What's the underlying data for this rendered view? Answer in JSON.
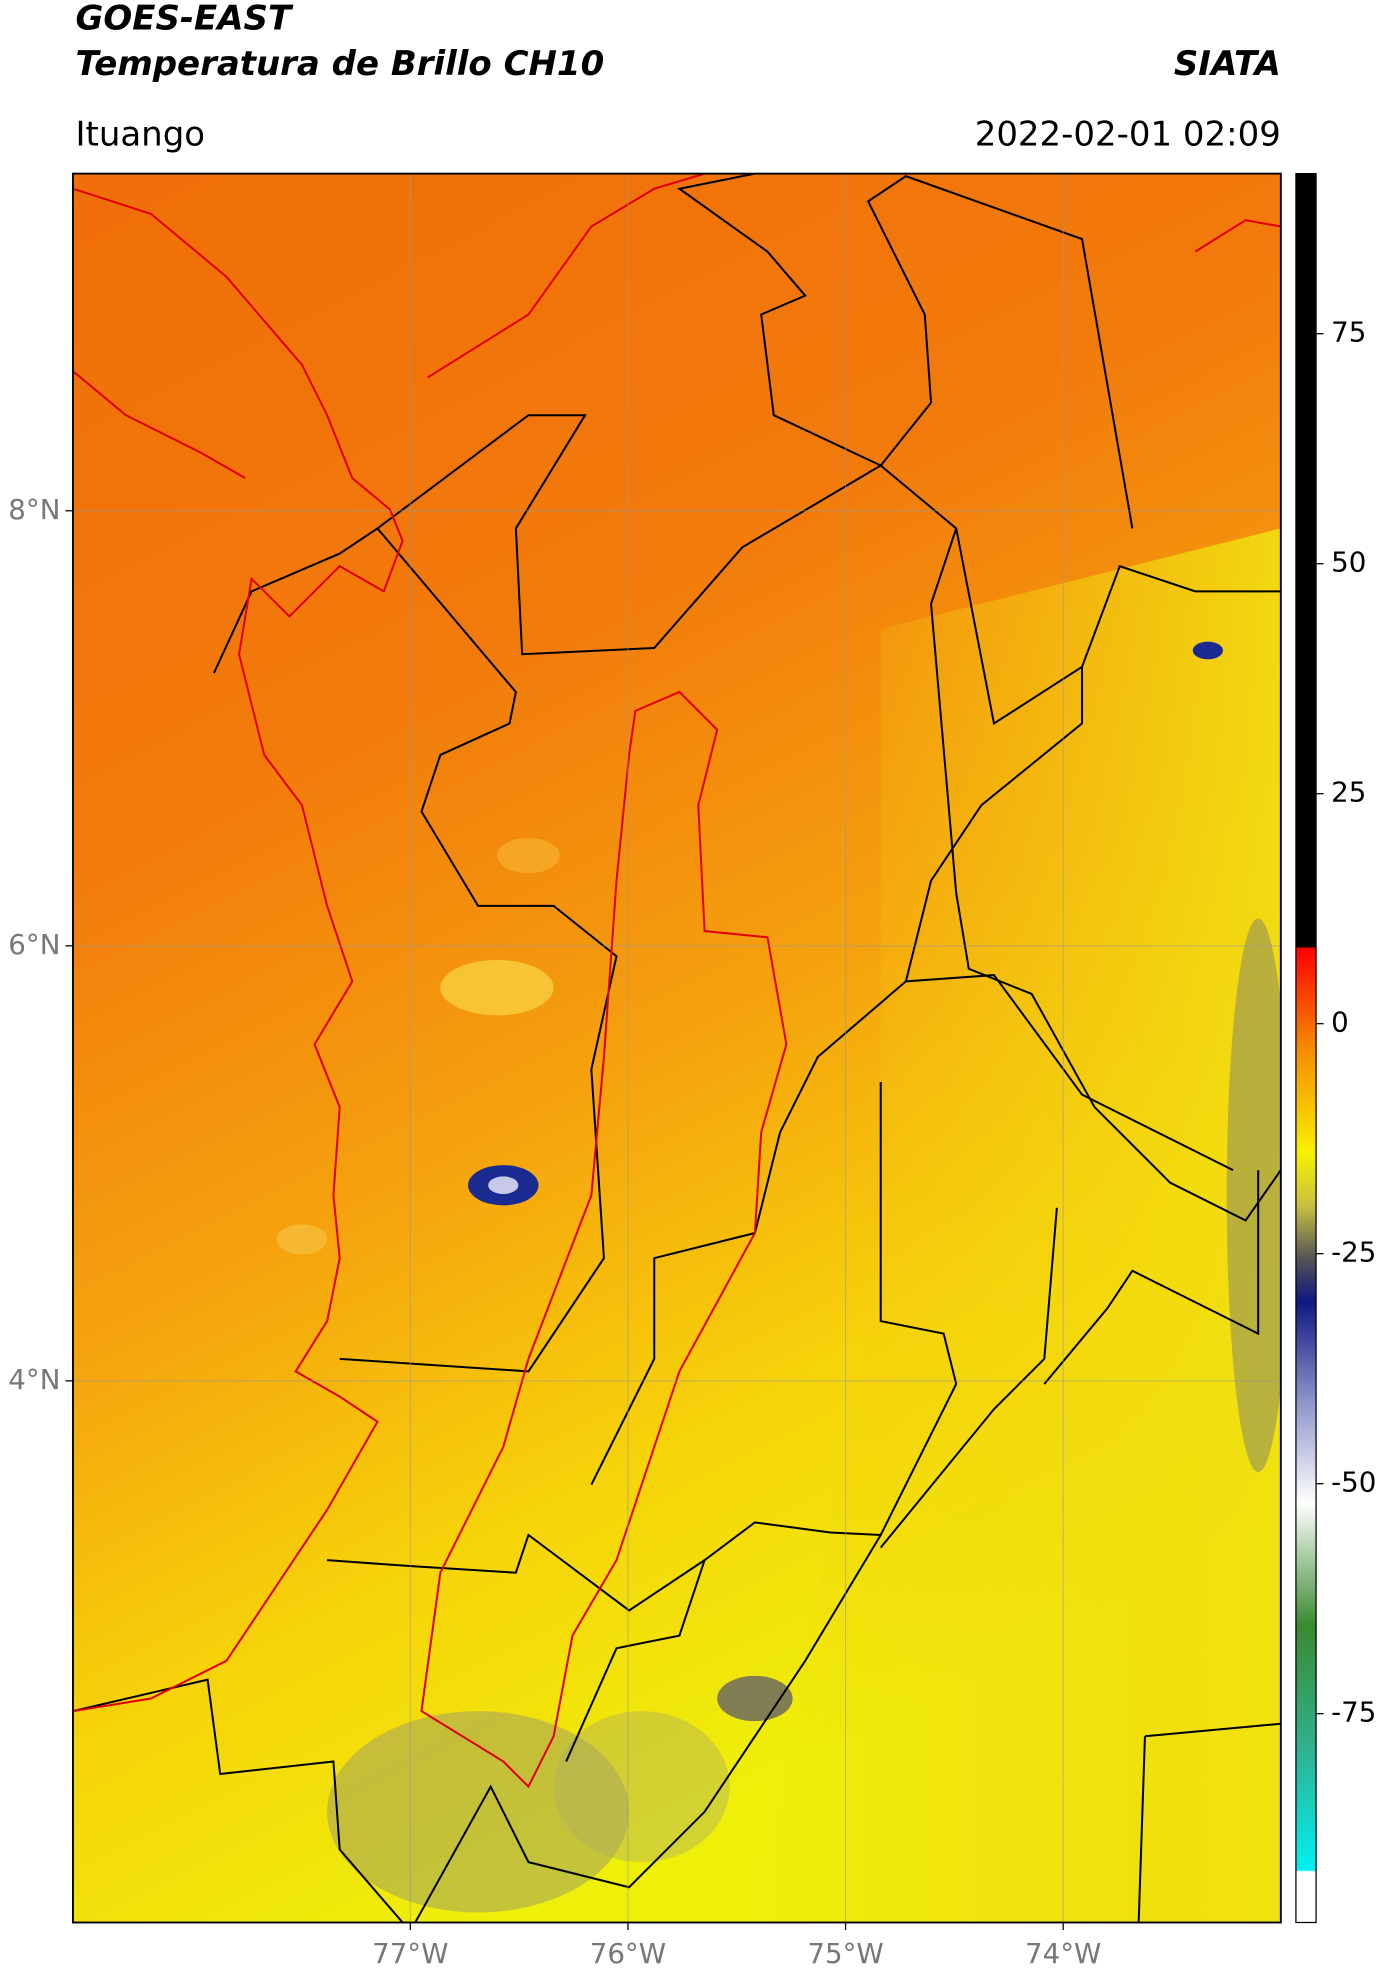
{
  "header": {
    "title": "GOES-EAST",
    "subtitle": "Temperatura de Brillo CH10",
    "source": "SIATA",
    "region": "Ituango",
    "datetime": "2022-02-01 02:09"
  },
  "map": {
    "xlim": [
      -78.55,
      -73.0
    ],
    "ylim": [
      1.51,
      9.55
    ],
    "xticks": [
      {
        "value": -77,
        "label": "77°W"
      },
      {
        "value": -76,
        "label": "76°W"
      },
      {
        "value": -75,
        "label": "75°W"
      },
      {
        "value": -74,
        "label": "74°W"
      }
    ],
    "yticks": [
      {
        "value": 8,
        "label": "8°N"
      },
      {
        "value": 6,
        "label": "6°N"
      },
      {
        "value": 4,
        "label": "4°N"
      }
    ],
    "grid": true
  },
  "colorbar": {
    "lim": [
      -97.7,
      92.4
    ],
    "ticks": [
      75,
      50,
      25,
      0,
      -25,
      -50,
      -75
    ]
  }
}
